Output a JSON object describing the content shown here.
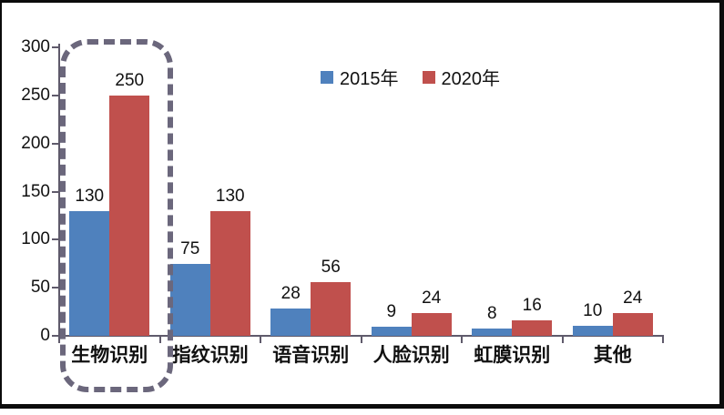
{
  "chart_data": {
    "type": "bar",
    "title": "",
    "xlabel": "",
    "ylabel": "",
    "categories": [
      "生物识别",
      "指纹识别",
      "语音识别",
      "人脸识别",
      "虹膜识别",
      "其他"
    ],
    "series": [
      {
        "name": "2015年",
        "color": "#4f81bd",
        "values": [
          130,
          75,
          28,
          9,
          8,
          10
        ]
      },
      {
        "name": "2020年",
        "color": "#c0504d",
        "values": [
          250,
          130,
          56,
          24,
          16,
          24
        ]
      }
    ],
    "ylim": [
      0,
      300
    ],
    "yticks": [
      0,
      50,
      100,
      150,
      200,
      250,
      300
    ],
    "grid": false,
    "legend_position": "top-center",
    "data_labels": true,
    "highlight": {
      "target_category": "生物识别",
      "style": "dashed-rounded-box",
      "color": "#6b677c"
    }
  }
}
